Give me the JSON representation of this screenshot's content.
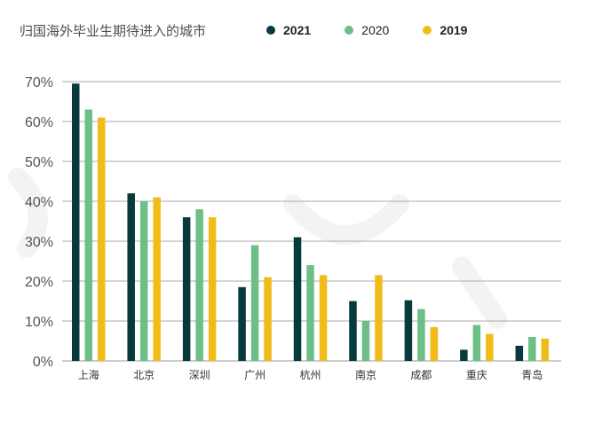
{
  "chart_data": {
    "type": "bar",
    "title": "归国海外毕业生期待进入的城市",
    "categories": [
      "上海",
      "北京",
      "深圳",
      "广州",
      "杭州",
      "南京",
      "成都",
      "重庆",
      "青岛"
    ],
    "series": [
      {
        "name": "2021",
        "color": "#063a3c",
        "values": [
          69.5,
          42,
          36,
          18.5,
          31,
          15,
          15.2,
          2.8,
          3.8
        ]
      },
      {
        "name": "2020",
        "color": "#6dbf87",
        "values": [
          63,
          40,
          38,
          29,
          24,
          10,
          13,
          9,
          6
        ]
      },
      {
        "name": "2019",
        "color": "#f1bc1a",
        "values": [
          61,
          41,
          36,
          21,
          21.5,
          21.5,
          8.5,
          6.8,
          5.6
        ]
      }
    ],
    "ylim": [
      0,
      70
    ],
    "yticks": [
      0,
      10,
      20,
      30,
      40,
      50,
      60,
      70
    ],
    "ytick_labels": [
      "0%",
      "10%",
      "20%",
      "30%",
      "40%",
      "50%",
      "60%",
      "70%"
    ],
    "grid": true,
    "legend_position": "top"
  }
}
